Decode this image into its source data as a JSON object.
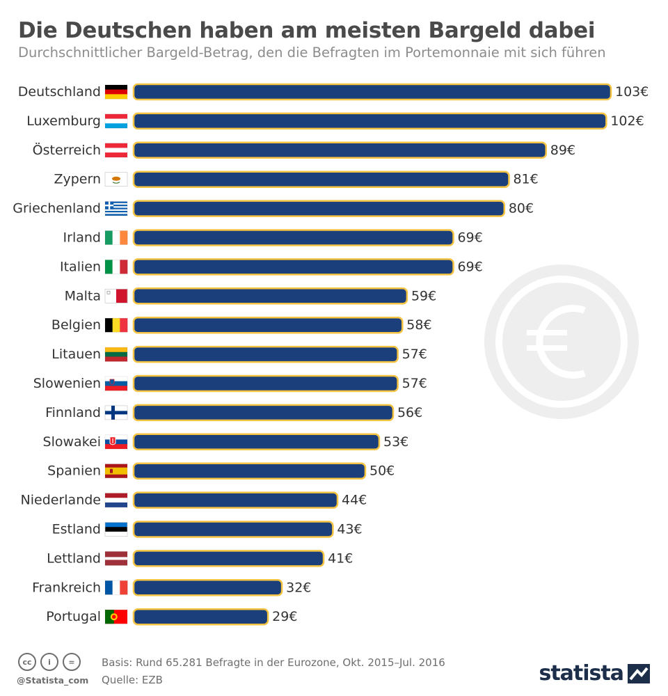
{
  "header": {
    "title": "Die Deutschen haben am meisten Bargeld dabei",
    "subtitle": "Durchschnittlicher Bargeld-Betrag, den die Befragten im Portemonnaie mit sich führen"
  },
  "chart_data": {
    "type": "bar",
    "orientation": "horizontal",
    "unit_suffix": "€",
    "categories": [
      "Deutschland",
      "Luxemburg",
      "Österreich",
      "Zypern",
      "Griechenland",
      "Irland",
      "Italien",
      "Malta",
      "Belgien",
      "Litauen",
      "Slowenien",
      "Finnland",
      "Slowakei",
      "Spanien",
      "Niederlande",
      "Estland",
      "Lettland",
      "Frankreich",
      "Portugal"
    ],
    "values": [
      103,
      102,
      89,
      81,
      80,
      69,
      69,
      59,
      58,
      57,
      57,
      56,
      53,
      50,
      44,
      43,
      41,
      32,
      29
    ],
    "value_labels": [
      "103€",
      "102€",
      "89€",
      "81€",
      "80€",
      "69€",
      "69€",
      "59€",
      "58€",
      "57€",
      "57€",
      "56€",
      "53€",
      "50€",
      "44€",
      "43€",
      "41€",
      "32€",
      "29€"
    ],
    "flags": [
      "de",
      "lu",
      "at",
      "cy",
      "gr",
      "ie",
      "it",
      "mt",
      "be",
      "lt",
      "si",
      "fi",
      "sk",
      "es",
      "nl",
      "ee",
      "lv",
      "fr",
      "pt"
    ],
    "xlim": [
      0,
      103
    ],
    "grid": false,
    "legend": "none",
    "colors": {
      "bar": "#1b3f7a",
      "bar_border": "#f5c342",
      "label": "#333333",
      "watermark": "#eeeeee"
    }
  },
  "footer": {
    "license_icons": [
      "cc-icon",
      "by-icon",
      "nd-icon"
    ],
    "license_glyphs": [
      "cc",
      "i",
      "="
    ],
    "handle": "@Statista_com",
    "basis": "Basis: Rund 65.281 Befragte in der Eurozone, Okt. 2015–Jul. 2016",
    "source": "Quelle: EZB",
    "logo": "statista"
  }
}
